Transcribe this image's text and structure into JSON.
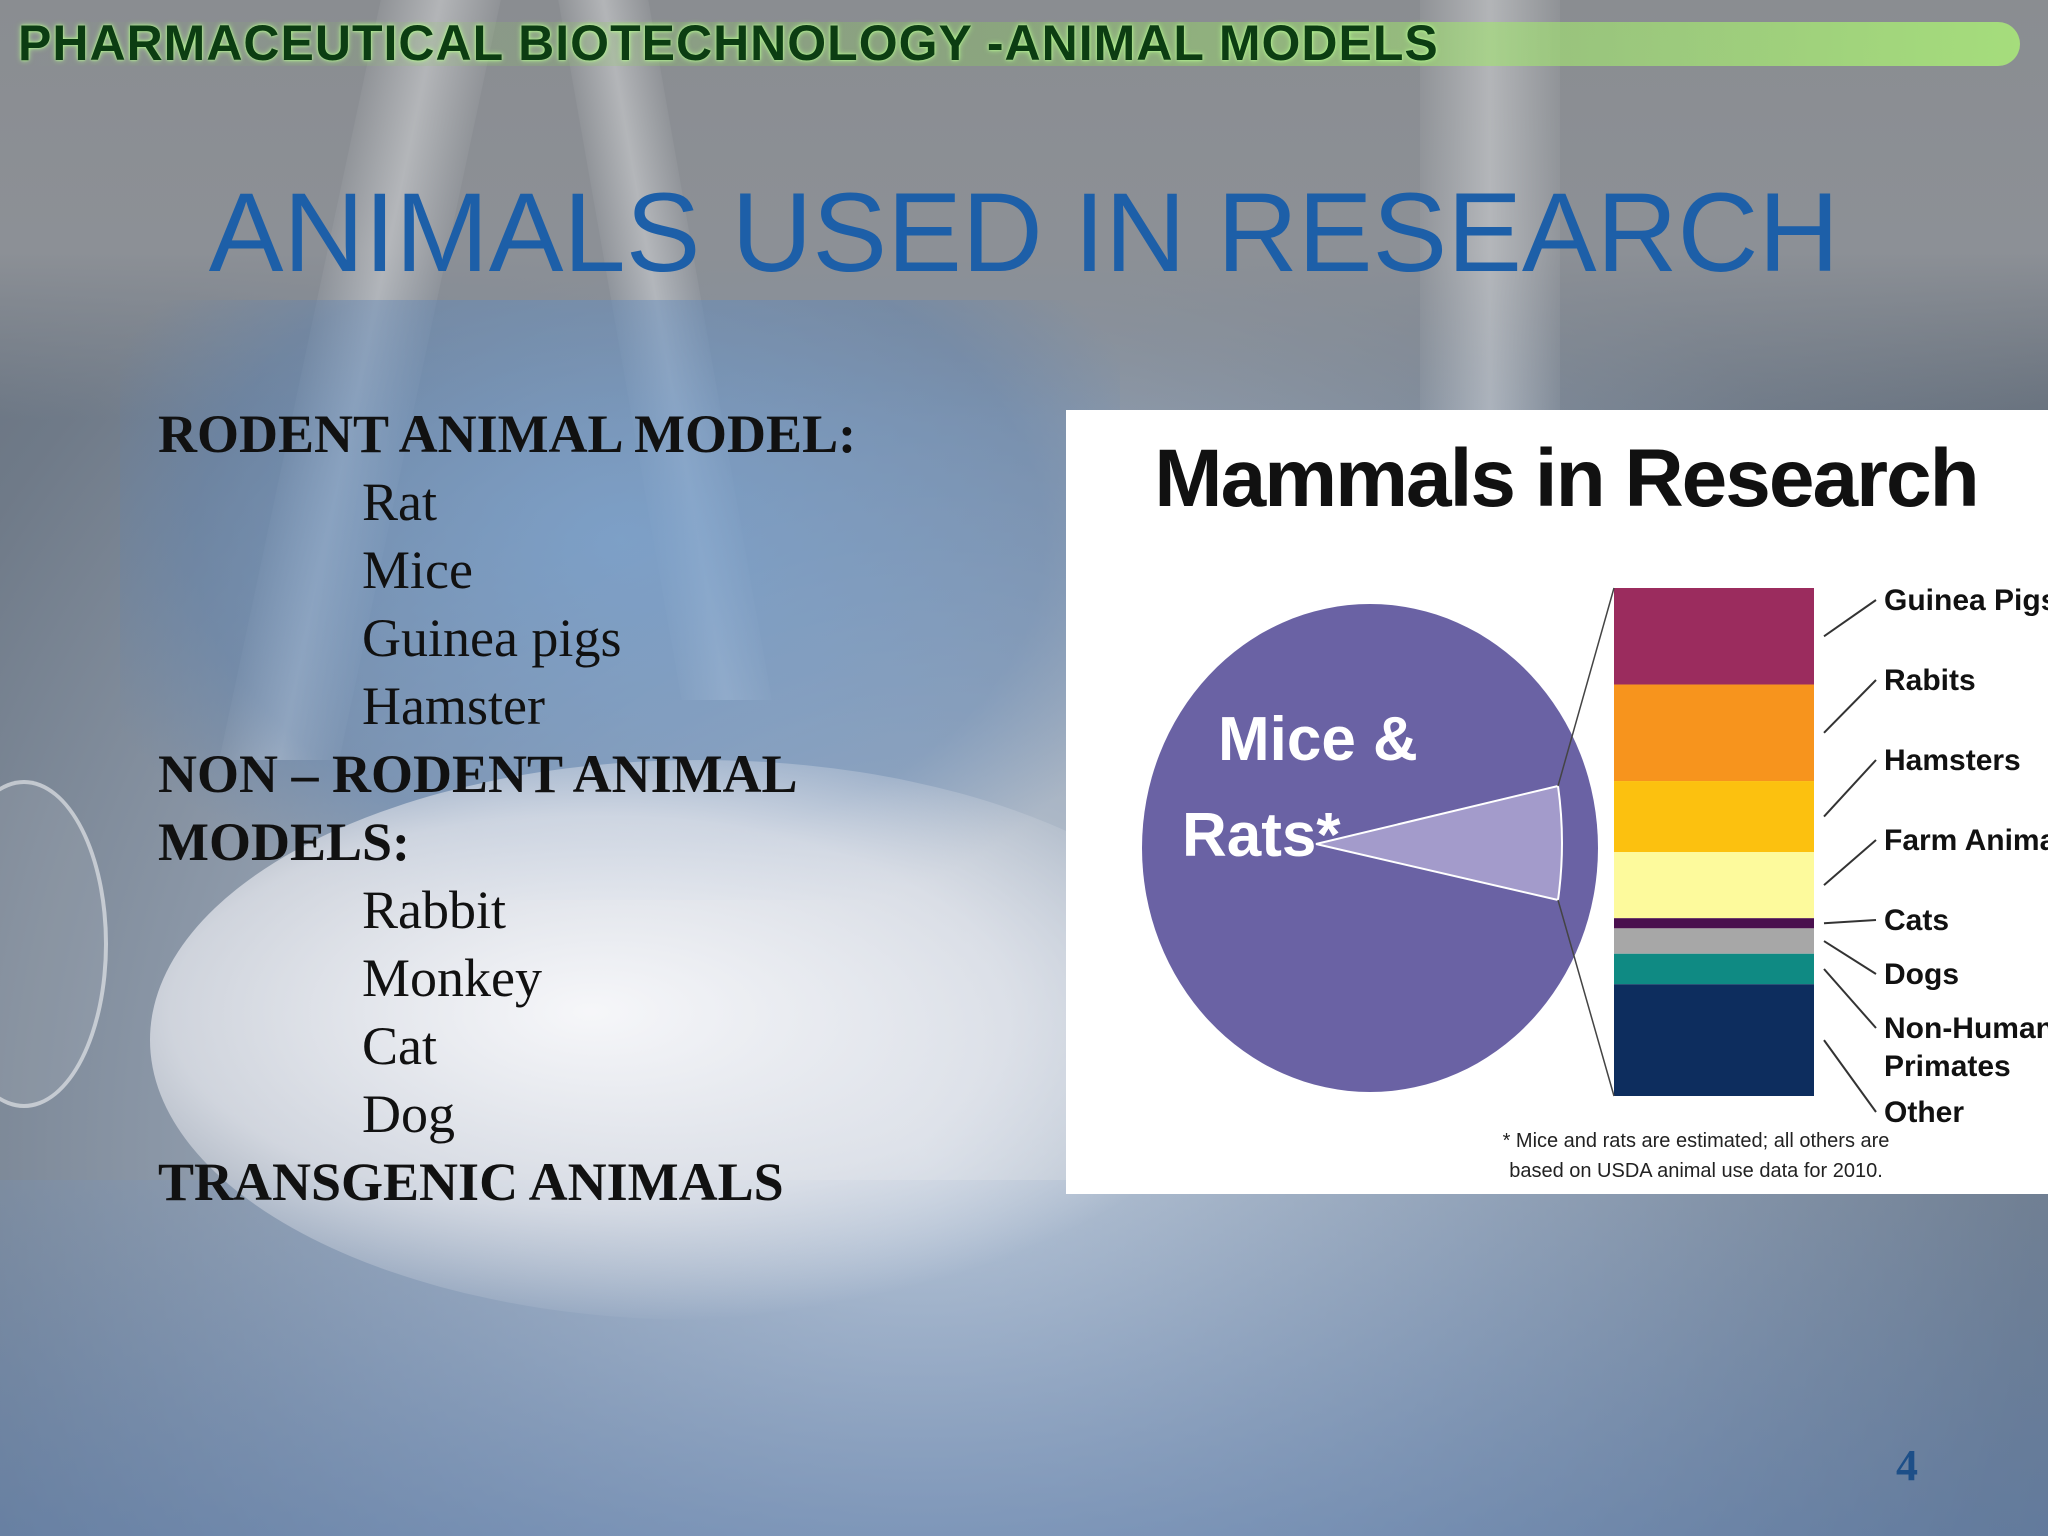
{
  "header": {
    "title": "PHARMACEUTICAL BIOTECHNOLOGY -ANIMAL MODELS"
  },
  "slide_title": "ANIMALS USED IN RESEARCH",
  "list": {
    "rodent_heading": "RODENT ANIMAL MODEL:",
    "rodent_items": [
      "Rat",
      "Mice",
      "Guinea pigs",
      "Hamster"
    ],
    "non_rodent_heading_line1": "NON – RODENT ANIMAL",
    "non_rodent_heading_line2": "MODELS:",
    "non_rodent_items": [
      "Rabbit",
      "Monkey",
      "Cat",
      "Dog"
    ],
    "transgenic_heading": "TRANSGENIC ANIMALS"
  },
  "chart_data": {
    "type": "pie",
    "title": "Mammals in Research",
    "pie_label_line1": "Mice &",
    "pie_label_line2": "Rats*",
    "pie_color": "#6a62a4",
    "other_slice_color": "#a39bcb",
    "breakdown": [
      {
        "label": "Guinea Pigs",
        "share": 0.19,
        "color": "#9b2c5e"
      },
      {
        "label": "Rabits",
        "share": 0.19,
        "color": "#f7941d"
      },
      {
        "label": "Hamsters",
        "share": 0.14,
        "color": "#fcc10f"
      },
      {
        "label": "Farm Animals",
        "share": 0.13,
        "color": "#fdfa9c"
      },
      {
        "label": "Cats",
        "share": 0.02,
        "color": "#4a0f4e"
      },
      {
        "label": "Dogs",
        "share": 0.05,
        "color": "#a7a7a7"
      },
      {
        "label": "Non-Human Primates",
        "share": 0.06,
        "color": "#0f8a83"
      },
      {
        "label": "Other",
        "share": 0.22,
        "color": "#0d2d5e"
      }
    ],
    "footnote_line1": "* Mice and rats are estimated; all others are",
    "footnote_line2": "based on USDA animal use data for 2010."
  },
  "page_number": "4",
  "colors": {
    "title_blue": "#1d5fa8",
    "header_green": "#0c3d12"
  }
}
